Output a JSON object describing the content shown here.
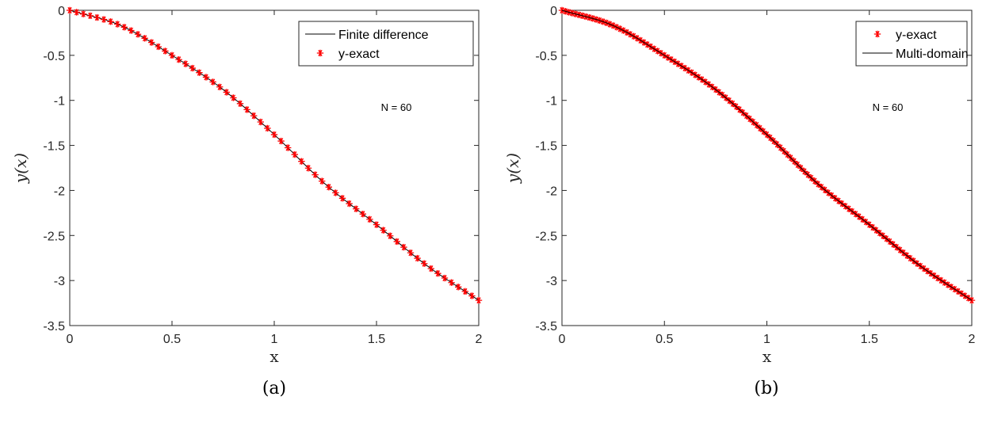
{
  "chart_data": [
    {
      "type": "line",
      "caption": "(a)",
      "xlabel": "x",
      "ylabel": "y(x)",
      "xlim": [
        0,
        2
      ],
      "ylim": [
        -3.5,
        0
      ],
      "xticks": [
        0,
        0.5,
        1,
        1.5,
        2
      ],
      "xtick_labels": [
        "0",
        "0.5",
        "1",
        "1.5",
        "2"
      ],
      "yticks": [
        0,
        -0.5,
        -1,
        -1.5,
        -2,
        -2.5,
        -3,
        -3.5
      ],
      "ytick_labels": [
        "0",
        "-0.5",
        "-1",
        "-1.5",
        "-2",
        "-2.5",
        "-3",
        "-3.5"
      ],
      "grid": false,
      "legend_position": "top-right",
      "annotation": "N = 60",
      "series": [
        {
          "name": "Finite difference",
          "style": "line",
          "color": "#000000",
          "n_points": 61,
          "x": [
            0,
            0.25,
            0.5,
            0.75,
            1.0,
            1.25,
            1.5,
            1.75,
            2.0
          ],
          "y": [
            0,
            -0.17,
            -0.5,
            -0.88,
            -1.38,
            -1.93,
            -2.38,
            -2.84,
            -3.22
          ]
        },
        {
          "name": "y-exact",
          "style": "markers",
          "marker": "asterisk",
          "color": "#ff0000",
          "n_points": 61,
          "x": [
            0,
            0.25,
            0.5,
            0.75,
            1.0,
            1.25,
            1.5,
            1.75,
            2.0
          ],
          "y": [
            0,
            -0.17,
            -0.5,
            -0.88,
            -1.38,
            -1.93,
            -2.38,
            -2.84,
            -3.22
          ]
        }
      ]
    },
    {
      "type": "line",
      "caption": "(b)",
      "xlabel": "x",
      "ylabel": "y(x)",
      "xlim": [
        0,
        2
      ],
      "ylim": [
        -3.5,
        0
      ],
      "xticks": [
        0,
        0.5,
        1,
        1.5,
        2
      ],
      "xtick_labels": [
        "0",
        "0.5",
        "1",
        "1.5",
        "2"
      ],
      "yticks": [
        0,
        -0.5,
        -1,
        -1.5,
        -2,
        -2.5,
        -3,
        -3.5
      ],
      "ytick_labels": [
        "0",
        "-0.5",
        "-1",
        "-1.5",
        "-2",
        "-2.5",
        "-3",
        "-3.5"
      ],
      "grid": false,
      "legend_position": "top-right",
      "annotation": "N = 60",
      "series": [
        {
          "name": "y-exact",
          "style": "markers",
          "marker": "asterisk",
          "color": "#ff0000",
          "n_points": 121,
          "x": [
            0,
            0.25,
            0.5,
            0.75,
            1.0,
            1.25,
            1.5,
            1.75,
            2.0
          ],
          "y": [
            0,
            -0.17,
            -0.5,
            -0.88,
            -1.38,
            -1.93,
            -2.38,
            -2.84,
            -3.22
          ]
        },
        {
          "name": "Multi-domain",
          "style": "line",
          "color": "#000000",
          "n_points": 121,
          "x": [
            0,
            0.25,
            0.5,
            0.75,
            1.0,
            1.25,
            1.5,
            1.75,
            2.0
          ],
          "y": [
            0,
            -0.17,
            -0.5,
            -0.88,
            -1.38,
            -1.93,
            -2.38,
            -2.84,
            -3.22
          ]
        }
      ]
    }
  ]
}
